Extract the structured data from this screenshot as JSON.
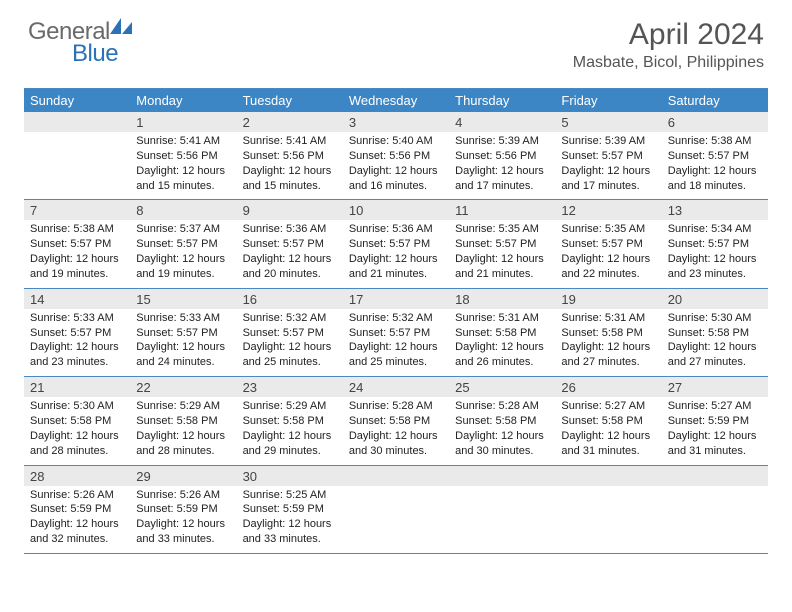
{
  "logo": {
    "general": "General",
    "blue": "Blue"
  },
  "title": {
    "month": "April 2024",
    "location": "Masbate, Bicol, Philippines"
  },
  "colors": {
    "header_bg": "#3d86c6",
    "header_text": "#ffffff",
    "daynum_bg": "#eaeaea",
    "border": "#4a88c2",
    "text": "#222222",
    "title_text": "#555555"
  },
  "day_labels": [
    "Sunday",
    "Monday",
    "Tuesday",
    "Wednesday",
    "Thursday",
    "Friday",
    "Saturday"
  ],
  "weeks": [
    {
      "nums": [
        "",
        "1",
        "2",
        "3",
        "4",
        "5",
        "6"
      ],
      "info": [
        "",
        "Sunrise: 5:41 AM\nSunset: 5:56 PM\nDaylight: 12 hours and 15 minutes.",
        "Sunrise: 5:41 AM\nSunset: 5:56 PM\nDaylight: 12 hours and 15 minutes.",
        "Sunrise: 5:40 AM\nSunset: 5:56 PM\nDaylight: 12 hours and 16 minutes.",
        "Sunrise: 5:39 AM\nSunset: 5:56 PM\nDaylight: 12 hours and 17 minutes.",
        "Sunrise: 5:39 AM\nSunset: 5:57 PM\nDaylight: 12 hours and 17 minutes.",
        "Sunrise: 5:38 AM\nSunset: 5:57 PM\nDaylight: 12 hours and 18 minutes."
      ]
    },
    {
      "nums": [
        "7",
        "8",
        "9",
        "10",
        "11",
        "12",
        "13"
      ],
      "info": [
        "Sunrise: 5:38 AM\nSunset: 5:57 PM\nDaylight: 12 hours and 19 minutes.",
        "Sunrise: 5:37 AM\nSunset: 5:57 PM\nDaylight: 12 hours and 19 minutes.",
        "Sunrise: 5:36 AM\nSunset: 5:57 PM\nDaylight: 12 hours and 20 minutes.",
        "Sunrise: 5:36 AM\nSunset: 5:57 PM\nDaylight: 12 hours and 21 minutes.",
        "Sunrise: 5:35 AM\nSunset: 5:57 PM\nDaylight: 12 hours and 21 minutes.",
        "Sunrise: 5:35 AM\nSunset: 5:57 PM\nDaylight: 12 hours and 22 minutes.",
        "Sunrise: 5:34 AM\nSunset: 5:57 PM\nDaylight: 12 hours and 23 minutes."
      ]
    },
    {
      "nums": [
        "14",
        "15",
        "16",
        "17",
        "18",
        "19",
        "20"
      ],
      "info": [
        "Sunrise: 5:33 AM\nSunset: 5:57 PM\nDaylight: 12 hours and 23 minutes.",
        "Sunrise: 5:33 AM\nSunset: 5:57 PM\nDaylight: 12 hours and 24 minutes.",
        "Sunrise: 5:32 AM\nSunset: 5:57 PM\nDaylight: 12 hours and 25 minutes.",
        "Sunrise: 5:32 AM\nSunset: 5:57 PM\nDaylight: 12 hours and 25 minutes.",
        "Sunrise: 5:31 AM\nSunset: 5:58 PM\nDaylight: 12 hours and 26 minutes.",
        "Sunrise: 5:31 AM\nSunset: 5:58 PM\nDaylight: 12 hours and 27 minutes.",
        "Sunrise: 5:30 AM\nSunset: 5:58 PM\nDaylight: 12 hours and 27 minutes."
      ]
    },
    {
      "nums": [
        "21",
        "22",
        "23",
        "24",
        "25",
        "26",
        "27"
      ],
      "info": [
        "Sunrise: 5:30 AM\nSunset: 5:58 PM\nDaylight: 12 hours and 28 minutes.",
        "Sunrise: 5:29 AM\nSunset: 5:58 PM\nDaylight: 12 hours and 28 minutes.",
        "Sunrise: 5:29 AM\nSunset: 5:58 PM\nDaylight: 12 hours and 29 minutes.",
        "Sunrise: 5:28 AM\nSunset: 5:58 PM\nDaylight: 12 hours and 30 minutes.",
        "Sunrise: 5:28 AM\nSunset: 5:58 PM\nDaylight: 12 hours and 30 minutes.",
        "Sunrise: 5:27 AM\nSunset: 5:58 PM\nDaylight: 12 hours and 31 minutes.",
        "Sunrise: 5:27 AM\nSunset: 5:59 PM\nDaylight: 12 hours and 31 minutes."
      ]
    },
    {
      "nums": [
        "28",
        "29",
        "30",
        "",
        "",
        "",
        ""
      ],
      "info": [
        "Sunrise: 5:26 AM\nSunset: 5:59 PM\nDaylight: 12 hours and 32 minutes.",
        "Sunrise: 5:26 AM\nSunset: 5:59 PM\nDaylight: 12 hours and 33 minutes.",
        "Sunrise: 5:25 AM\nSunset: 5:59 PM\nDaylight: 12 hours and 33 minutes.",
        "",
        "",
        "",
        ""
      ]
    }
  ]
}
